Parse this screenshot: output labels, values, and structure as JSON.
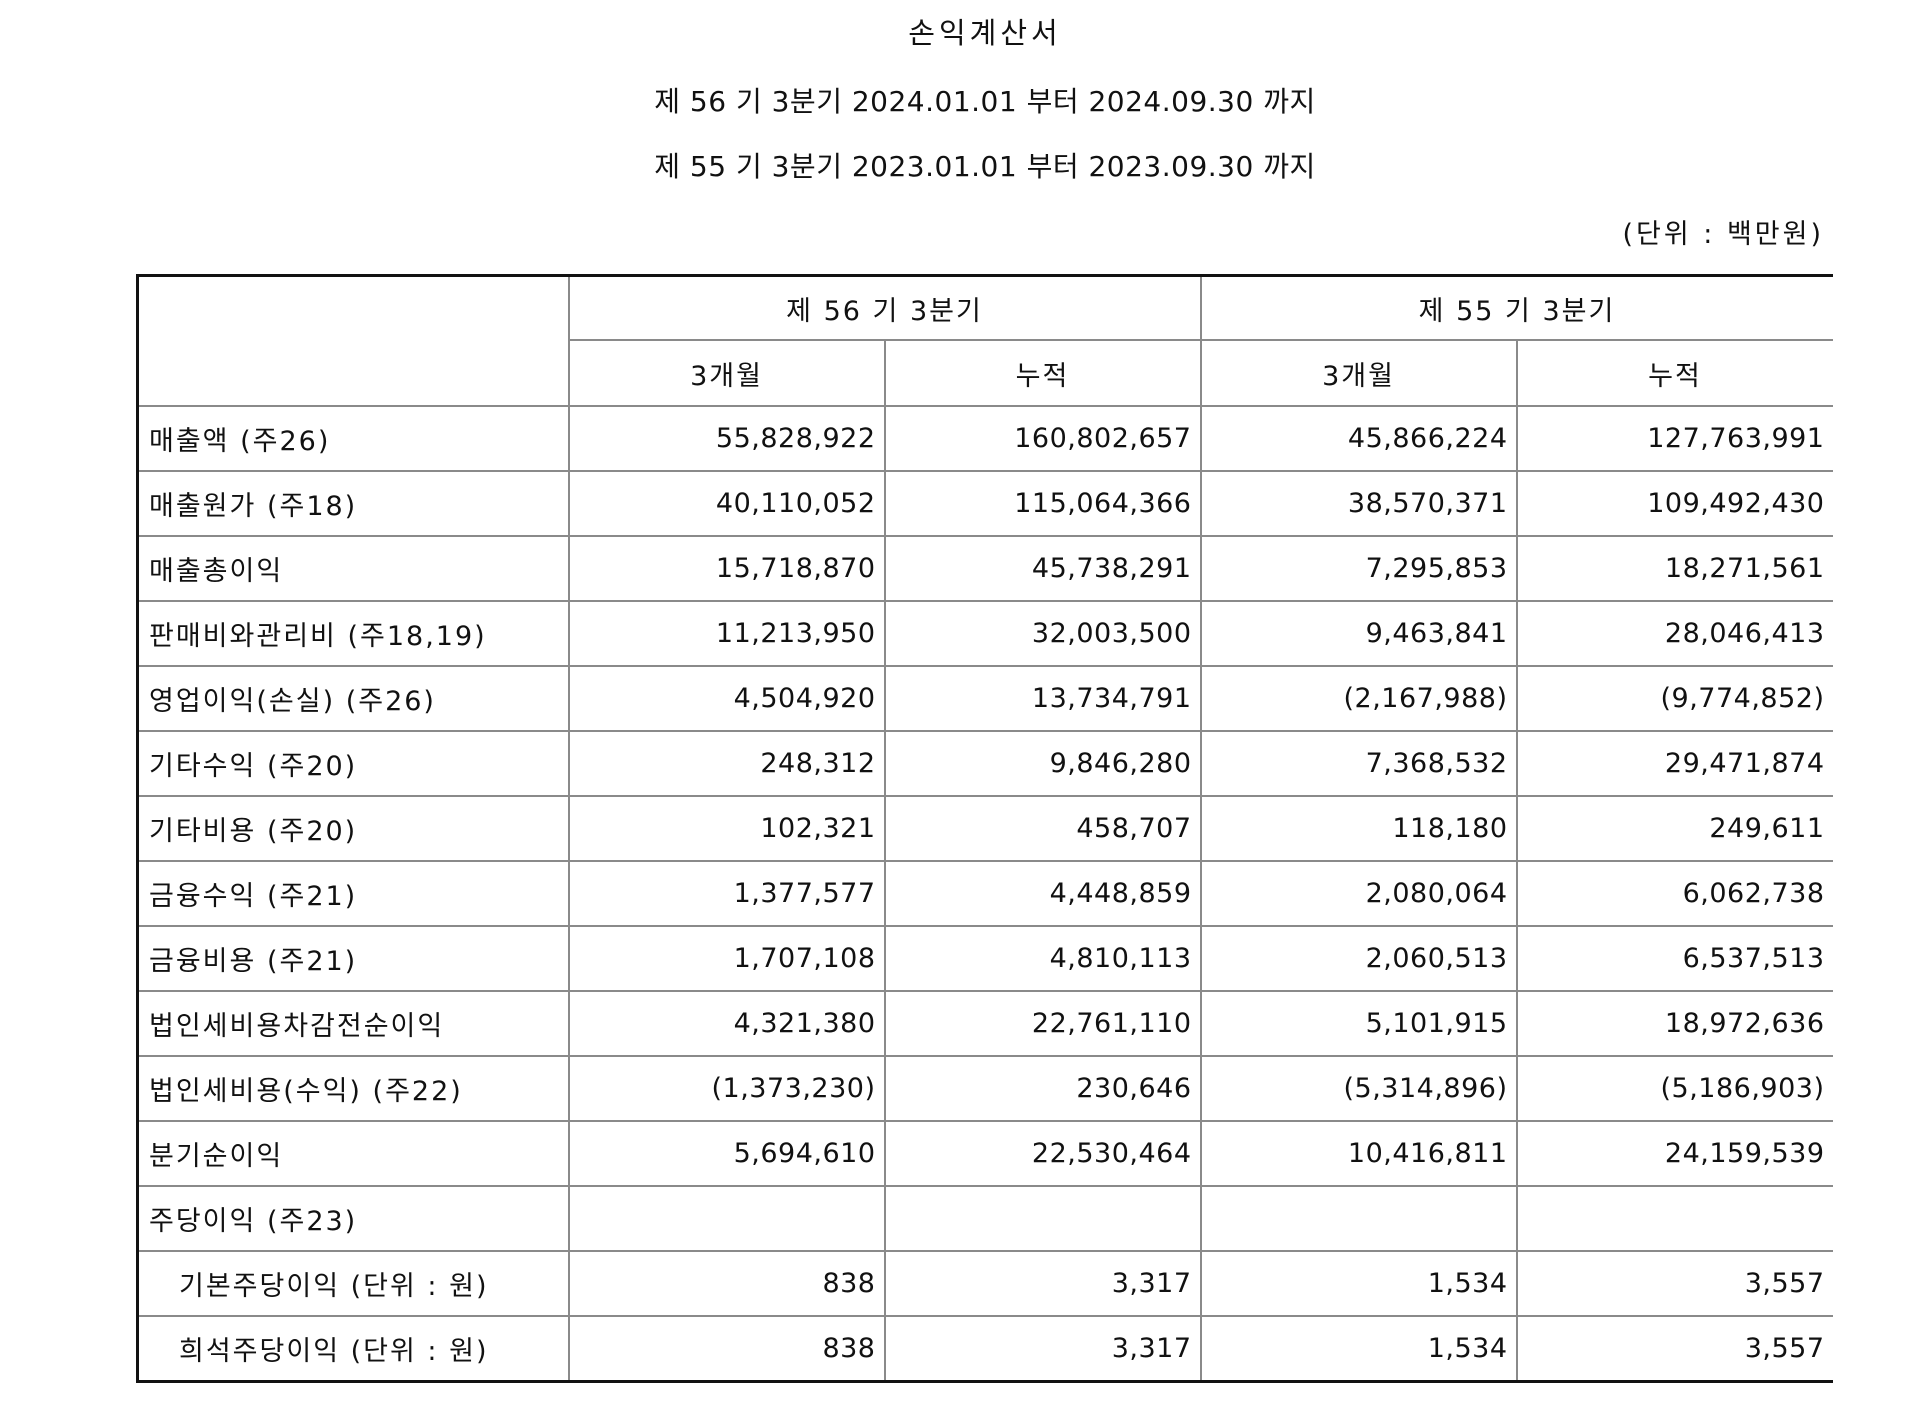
{
  "document": {
    "title": "손익계산서",
    "periods": [
      "제 56 기 3분기 2024.01.01 부터 2024.09.30 까지",
      "제 55 기 3분기 2023.01.01 부터 2023.09.30 까지"
    ],
    "unit": "(단위 : 백만원)"
  },
  "table": {
    "group_headers": [
      "제 56 기 3분기",
      "제 55 기 3분기"
    ],
    "sub_headers": [
      "3개월",
      "누적",
      "3개월",
      "누적"
    ],
    "rows": [
      {
        "label": "매출액 (주26)",
        "values": [
          "55,828,922",
          "160,802,657",
          "45,866,224",
          "127,763,991"
        ]
      },
      {
        "label": "매출원가 (주18)",
        "values": [
          "40,110,052",
          "115,064,366",
          "38,570,371",
          "109,492,430"
        ]
      },
      {
        "label": "매출총이익",
        "values": [
          "15,718,870",
          "45,738,291",
          "7,295,853",
          "18,271,561"
        ]
      },
      {
        "label": "판매비와관리비 (주18,19)",
        "values": [
          "11,213,950",
          "32,003,500",
          "9,463,841",
          "28,046,413"
        ]
      },
      {
        "label": "영업이익(손실) (주26)",
        "values": [
          "4,504,920",
          "13,734,791",
          "(2,167,988)",
          "(9,774,852)"
        ]
      },
      {
        "label": "기타수익 (주20)",
        "values": [
          "248,312",
          "9,846,280",
          "7,368,532",
          "29,471,874"
        ]
      },
      {
        "label": "기타비용 (주20)",
        "values": [
          "102,321",
          "458,707",
          "118,180",
          "249,611"
        ]
      },
      {
        "label": "금융수익 (주21)",
        "values": [
          "1,377,577",
          "4,448,859",
          "2,080,064",
          "6,062,738"
        ]
      },
      {
        "label": "금융비용 (주21)",
        "values": [
          "1,707,108",
          "4,810,113",
          "2,060,513",
          "6,537,513"
        ]
      },
      {
        "label": "법인세비용차감전순이익",
        "values": [
          "4,321,380",
          "22,761,110",
          "5,101,915",
          "18,972,636"
        ]
      },
      {
        "label": "법인세비용(수익) (주22)",
        "values": [
          "(1,373,230)",
          "230,646",
          "(5,314,896)",
          "(5,186,903)"
        ]
      },
      {
        "label": "분기순이익",
        "values": [
          "5,694,610",
          "22,530,464",
          "10,416,811",
          "24,159,539"
        ]
      },
      {
        "label": "주당이익 (주23)",
        "values": [
          "",
          "",
          "",
          ""
        ]
      },
      {
        "label": "기본주당이익 (단위 : 원)",
        "values": [
          "838",
          "3,317",
          "1,534",
          "3,557"
        ]
      },
      {
        "label": "희석주당이익 (단위 : 원)",
        "values": [
          "838",
          "3,317",
          "1,534",
          "3,557"
        ]
      }
    ]
  }
}
